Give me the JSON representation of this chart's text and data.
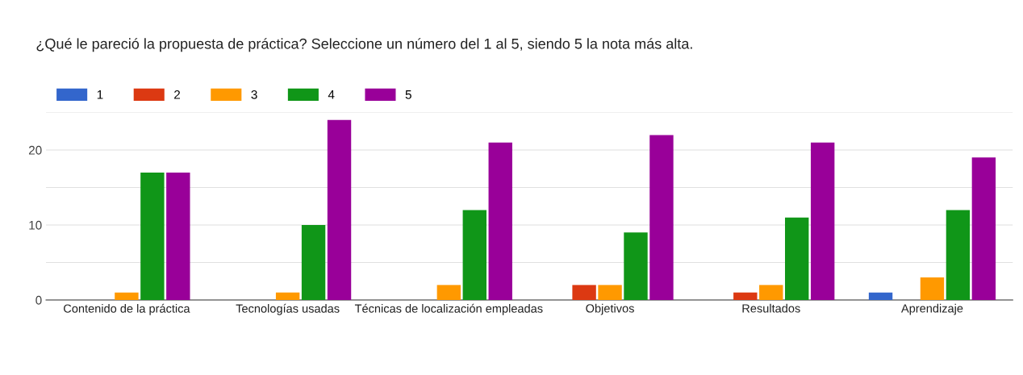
{
  "chart_data": {
    "type": "bar",
    "title": "¿Qué le pareció la propuesta de práctica? Seleccione un número del 1 al 5, siendo 5 la nota más alta.",
    "categories": [
      "Contenido de la práctica",
      "Tecnologías usadas",
      "Técnicas de localización empleadas",
      "Objetivos",
      "Resultados",
      "Aprendizaje"
    ],
    "series": [
      {
        "name": "1",
        "color": "#3366cc",
        "values": [
          0,
          0,
          0,
          0,
          0,
          1
        ]
      },
      {
        "name": "2",
        "color": "#dc3912",
        "values": [
          0,
          0,
          0,
          2,
          1,
          0
        ]
      },
      {
        "name": "3",
        "color": "#ff9900",
        "values": [
          1,
          1,
          2,
          2,
          2,
          3
        ]
      },
      {
        "name": "4",
        "color": "#109618",
        "values": [
          17,
          10,
          12,
          9,
          11,
          12
        ]
      },
      {
        "name": "5",
        "color": "#990099",
        "values": [
          17,
          24,
          21,
          22,
          21,
          19
        ]
      }
    ],
    "ylim": [
      0,
      25
    ],
    "yticks": [
      0,
      {
        "value": 5,
        "label": null
      },
      10,
      {
        "value": 15,
        "label": null
      },
      20,
      {
        "value": 25,
        "label": null
      }
    ],
    "grid": "y",
    "legend": "top left"
  }
}
